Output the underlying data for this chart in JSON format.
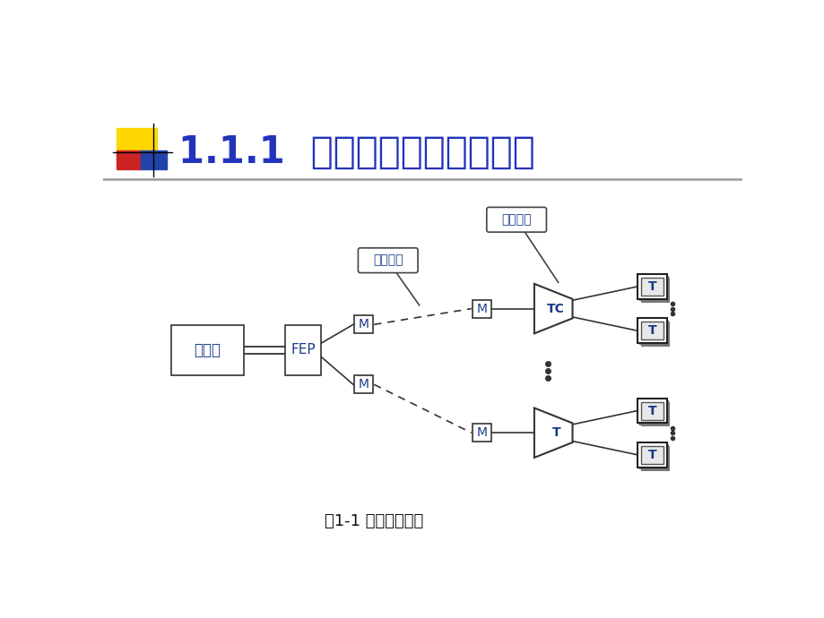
{
  "title": "1.1.1  面向终端的计算机网络",
  "title_color": "#2233BB",
  "title_fontsize": 30,
  "caption": "图1-1 远程联机系统",
  "caption_fontsize": 13,
  "bg_color": "#FFFFFF",
  "text_color": "#1a3a8a",
  "label_fontsize": 10,
  "accent_yellow": "#FFD700",
  "accent_red": "#CC2222",
  "accent_blue": "#2244AA",
  "line_color": "#333333",
  "box_edge": "#333333",
  "bubble_远程高速": "远程高速",
  "bubble_近程低速": "近程低速",
  "label_计算机": "计算机",
  "label_FEP": "FEP",
  "label_M": "M",
  "label_TC": "TC",
  "label_T": "T"
}
